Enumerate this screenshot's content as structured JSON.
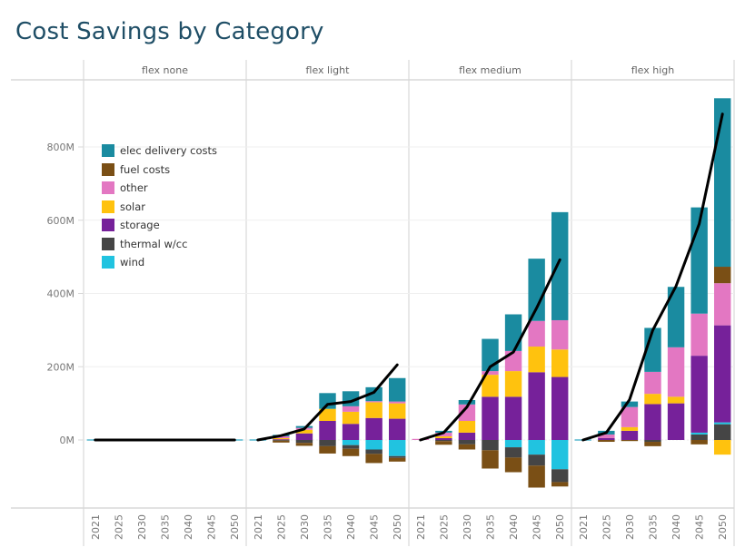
{
  "title": "Cost Savings by Category",
  "chart_data": {
    "type": "bar",
    "subtype": "stacked-bar-with-net-line, faceted",
    "title": "Cost Savings by Category",
    "xlabel": "",
    "ylabel": "",
    "ylim": [
      -170,
      970
    ],
    "y_ticks": [
      0,
      200,
      400,
      600,
      800
    ],
    "y_tick_labels": [
      "0M",
      "200M",
      "400M",
      "600M",
      "800M"
    ],
    "grid": true,
    "legend_position": "top-left",
    "categories": [
      "2021",
      "2025",
      "2030",
      "2035",
      "2040",
      "2045",
      "2050"
    ],
    "series_names": [
      "elec delivery costs",
      "fuel costs",
      "other",
      "solar",
      "storage",
      "thermal w/cc",
      "wind"
    ],
    "colors": {
      "elec delivery costs": "#1a8ba0",
      "fuel costs": "#7a4f15",
      "other": "#e377c2",
      "solar": "#ffc20e",
      "storage": "#76219a",
      "thermal w/cc": "#454545",
      "wind": "#21c3e0"
    },
    "net_line_color": "#000000",
    "panels": [
      {
        "name": "flex none",
        "series": [
          {
            "name": "elec delivery costs",
            "values": [
              0,
              0,
              0,
              0,
              0,
              0,
              0
            ]
          },
          {
            "name": "fuel costs",
            "values": [
              0,
              0,
              0,
              0,
              0,
              0,
              0
            ]
          },
          {
            "name": "other",
            "values": [
              0,
              0,
              0,
              0,
              0,
              0,
              0
            ]
          },
          {
            "name": "solar",
            "values": [
              0,
              0,
              0,
              0,
              0,
              0,
              0
            ]
          },
          {
            "name": "storage",
            "values": [
              0,
              0,
              0,
              0,
              0,
              0,
              0
            ]
          },
          {
            "name": "thermal w/cc",
            "values": [
              0,
              0,
              0,
              0,
              0,
              0,
              0
            ]
          },
          {
            "name": "wind",
            "values": [
              0,
              0,
              0,
              0,
              0,
              0,
              0
            ]
          }
        ],
        "net": [
          0,
          0,
          0,
          0,
          0,
          0,
          0
        ]
      },
      {
        "name": "flex light",
        "series": [
          {
            "name": "elec delivery costs",
            "values": [
              0,
              4,
              5,
              43,
              41,
              38,
              64
            ]
          },
          {
            "name": "fuel costs",
            "values": [
              0,
              -5,
              -8,
              -20,
              -20,
              -25,
              -10
            ]
          },
          {
            "name": "other",
            "values": [
              0,
              5,
              5,
              0,
              15,
              3,
              5
            ]
          },
          {
            "name": "solar",
            "values": [
              0,
              3,
              10,
              33,
              33,
              43,
              42
            ]
          },
          {
            "name": "storage",
            "values": [
              0,
              2,
              18,
              52,
              44,
              60,
              58
            ]
          },
          {
            "name": "thermal w/cc",
            "values": [
              0,
              -2,
              -8,
              -17,
              -10,
              -12,
              -5
            ]
          },
          {
            "name": "wind",
            "values": [
              0,
              0,
              0,
              0,
              -14,
              -26,
              -44
            ]
          }
        ],
        "net": [
          0,
          12,
          30,
          97,
          105,
          130,
          205
        ]
      },
      {
        "name": "flex medium",
        "series": [
          {
            "name": "elec delivery costs",
            "values": [
              0,
              5,
              12,
              88,
              100,
              170,
              295
            ]
          },
          {
            "name": "fuel costs",
            "values": [
              0,
              -10,
              -14,
              -50,
              -40,
              -60,
              -12
            ]
          },
          {
            "name": "other",
            "values": [
              3,
              10,
              45,
              10,
              55,
              70,
              80
            ]
          },
          {
            "name": "solar",
            "values": [
              0,
              5,
              32,
              60,
              70,
              70,
              75
            ]
          },
          {
            "name": "storage",
            "values": [
              0,
              5,
              20,
              118,
              118,
              185,
              172
            ]
          },
          {
            "name": "thermal w/cc",
            "values": [
              0,
              -3,
              -12,
              -28,
              -28,
              -30,
              -35
            ]
          },
          {
            "name": "wind",
            "values": [
              0,
              0,
              0,
              0,
              -20,
              -40,
              -80
            ]
          }
        ],
        "net": [
          0,
          20,
          90,
          200,
          240,
          360,
          492
        ]
      },
      {
        "name": "flex high",
        "series": [
          {
            "name": "elec delivery costs",
            "values": [
              0,
              10,
              15,
              120,
              165,
              290,
              460
            ]
          },
          {
            "name": "fuel costs",
            "values": [
              0,
              -5,
              -3,
              -12,
              0,
              -12,
              45
            ]
          },
          {
            "name": "other",
            "values": [
              0,
              10,
              55,
              60,
              135,
              115,
              115
            ]
          },
          {
            "name": "solar",
            "values": [
              0,
              0,
              10,
              28,
              18,
              0,
              -40
            ]
          },
          {
            "name": "storage",
            "values": [
              0,
              5,
              25,
              98,
              100,
              210,
              265
            ]
          },
          {
            "name": "thermal w/cc",
            "values": [
              0,
              0,
              0,
              -5,
              0,
              15,
              43
            ]
          },
          {
            "name": "wind",
            "values": [
              0,
              0,
              0,
              0,
              0,
              5,
              5
            ]
          }
        ],
        "net": [
          0,
          20,
          110,
          300,
          420,
          590,
          890
        ]
      }
    ]
  }
}
